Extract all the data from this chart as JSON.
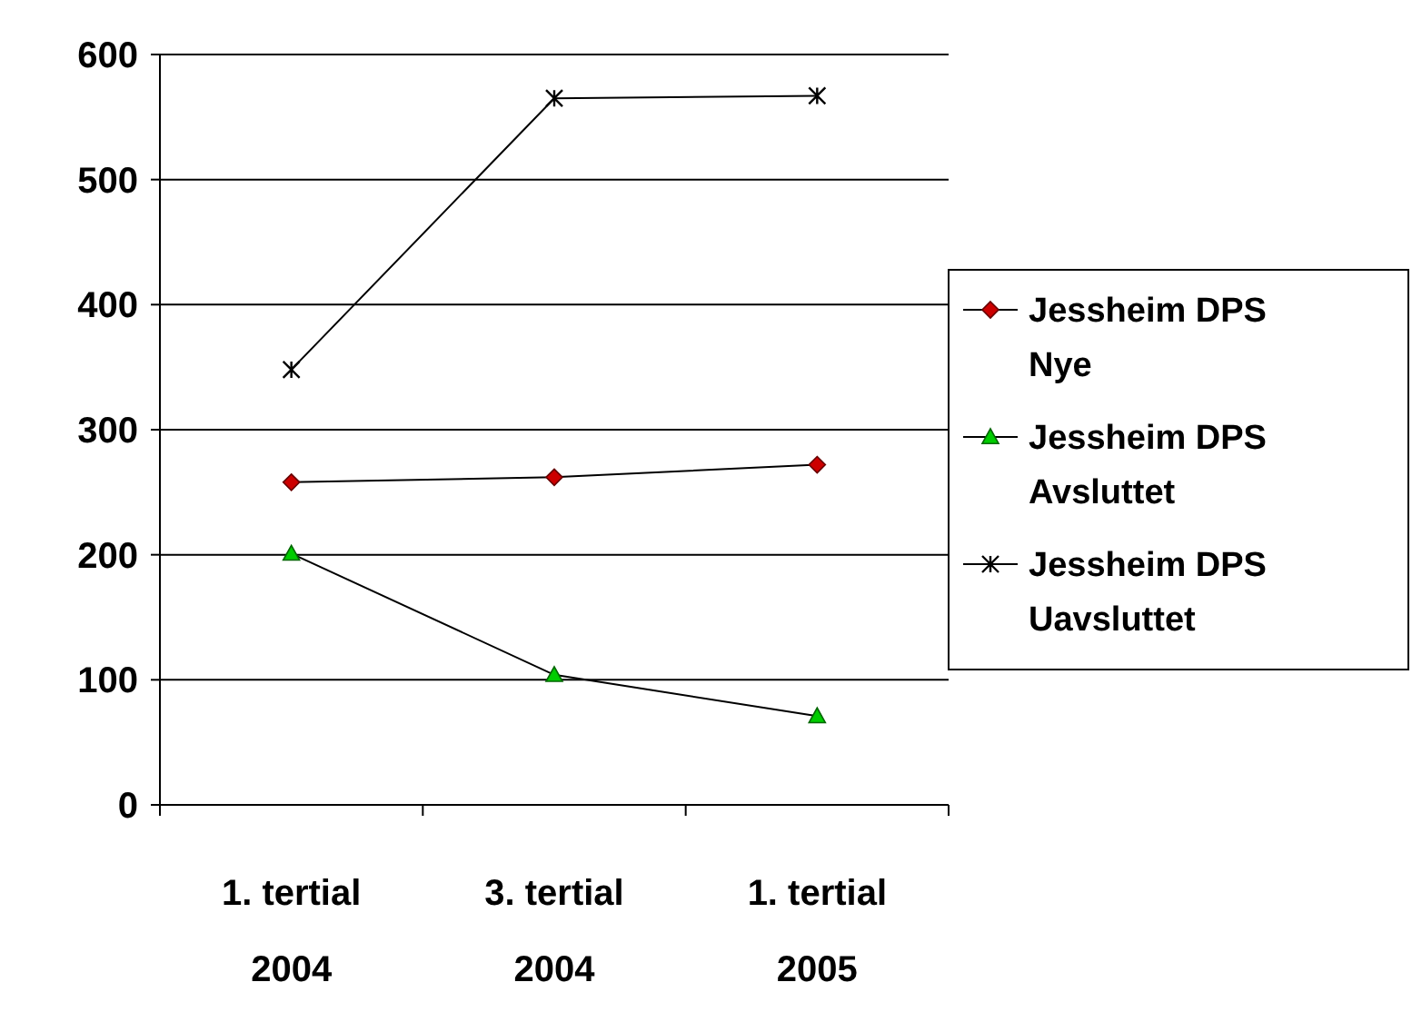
{
  "chart_data": {
    "type": "line",
    "categories": [
      "1. tertial 2004",
      "3. tertial 2004",
      "1. tertial 2005"
    ],
    "series": [
      {
        "name": "Jessheim DPS Nye",
        "color": "#cc0000",
        "marker": "diamond",
        "values": [
          258,
          262,
          272
        ]
      },
      {
        "name": "Jessheim DPS Avsluttet",
        "color": "#00cc00",
        "marker": "triangle",
        "values": [
          201,
          104,
          71
        ]
      },
      {
        "name": "Jessheim DPS Uavsluttet",
        "color": "#000000",
        "marker": "cross",
        "values": [
          348,
          565,
          567
        ]
      }
    ],
    "ylim": [
      0,
      600
    ],
    "yticks": [
      0,
      100,
      200,
      300,
      400,
      500,
      600
    ],
    "grid": "y",
    "legend": "right",
    "line_style": "solid"
  }
}
